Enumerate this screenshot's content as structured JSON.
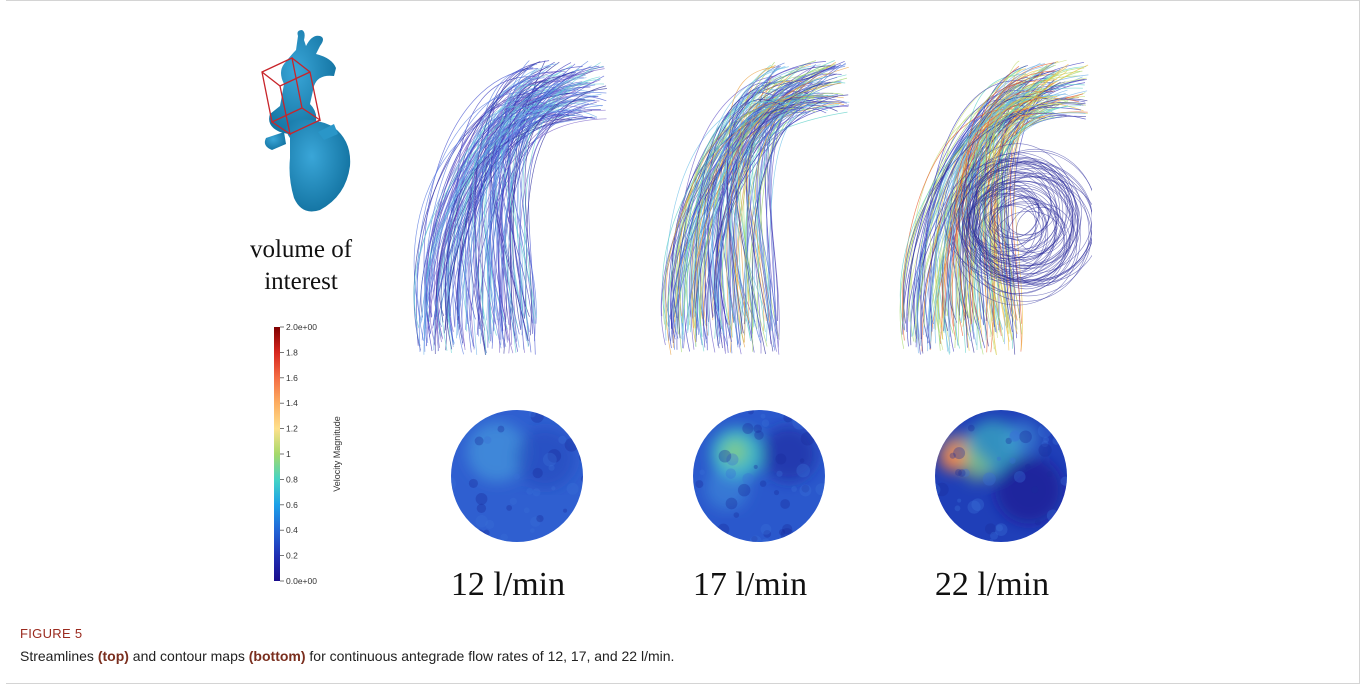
{
  "figure": {
    "label": "FIGURE 5",
    "caption": {
      "prefix": "Streamlines ",
      "top": "(top)",
      "middle": " and contour maps ",
      "bottom": "(bottom)",
      "suffix": " for continuous antegrade flow rates of 12, 17, and 22 l/min."
    }
  },
  "model": {
    "label_line1": "volume of",
    "label_line2": "interest"
  },
  "colorbar": {
    "title": "Velocity Magnitude",
    "ticks": [
      "2.0e+00",
      "1.8",
      "1.6",
      "1.4",
      "1.2",
      "1",
      "0.8",
      "0.6",
      "0.4",
      "0.2",
      "0.0e+00"
    ],
    "colors": [
      "#7f0000",
      "#d7261e",
      "#f46d43",
      "#fdae61",
      "#fee08b",
      "#a6d96a",
      "#45d4c4",
      "#1ca0e8",
      "#2165d6",
      "#1f2fb4",
      "#1a0c8c"
    ]
  },
  "panels": [
    {
      "flow_label": "12 l/min",
      "contour_base": "#2f5fd0"
    },
    {
      "flow_label": "17 l/min",
      "contour_base": "#2a58cc"
    },
    {
      "flow_label": "22 l/min",
      "contour_base": "#1f3fb8"
    }
  ]
}
